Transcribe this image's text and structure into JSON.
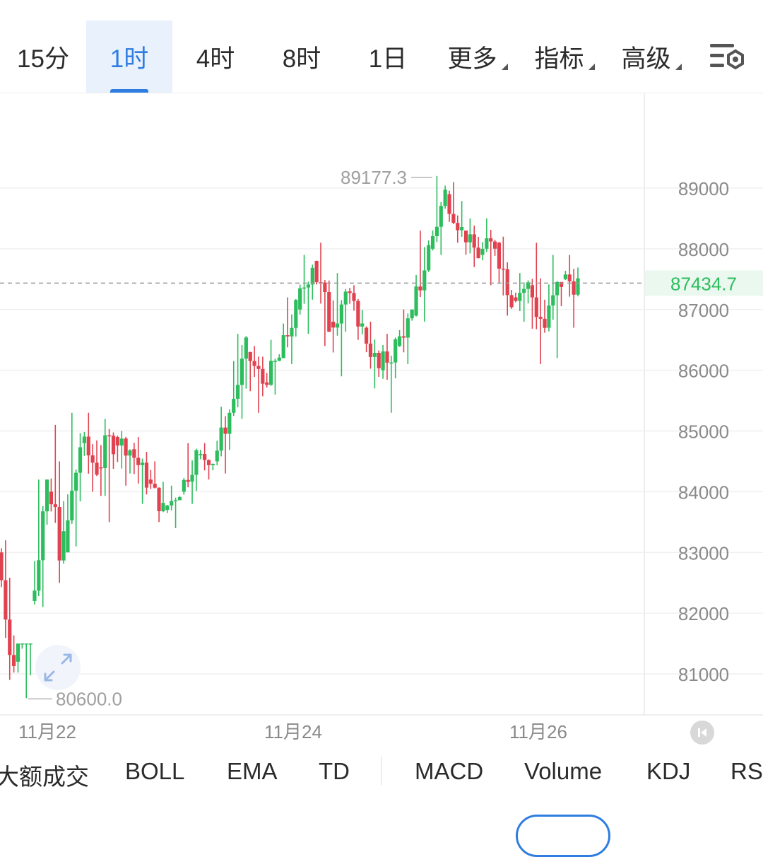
{
  "timeframe_tabs": [
    {
      "label": "15分"
    },
    {
      "label": "1时"
    },
    {
      "label": "4时"
    },
    {
      "label": "8时"
    },
    {
      "label": "1日"
    },
    {
      "label": "更多"
    },
    {
      "label": "指标"
    },
    {
      "label": "高级"
    }
  ],
  "active_tab": "1时",
  "indicators": [
    "大额成交",
    "BOLL",
    "EMA",
    "TD",
    "MACD",
    "Volume",
    "KDJ",
    "RSI"
  ],
  "colors": {
    "up": "#2ebd5e",
    "down": "#e0424f",
    "accent": "#2f7de1",
    "grid": "#f0f0f0",
    "axis_text": "#8a8a8a"
  },
  "chart_data": {
    "type": "candlestick",
    "y_ticks": [
      89000,
      88000,
      87000,
      86000,
      85000,
      84000,
      83000,
      82000,
      81000
    ],
    "x_ticks": [
      "11月22",
      "11月24",
      "11月26"
    ],
    "ylim": [
      80300,
      89800
    ],
    "current_price": "87434.7",
    "high_label": "89177.3",
    "low_label": "80600.0",
    "ohlc_rough": [
      [
        83000,
        83200,
        80900,
        81200
      ],
      [
        81200,
        81500,
        80600,
        82200
      ],
      [
        82200,
        84200,
        82100,
        84000
      ],
      [
        84000,
        85100,
        82500,
        83000
      ],
      [
        83000,
        85300,
        83100,
        84800
      ],
      [
        84800,
        85300,
        84000,
        84400
      ],
      [
        84400,
        85200,
        83500,
        84900
      ],
      [
        84900,
        85000,
        84100,
        84700
      ],
      [
        84700,
        84900,
        83800,
        84200
      ],
      [
        84200,
        84500,
        83500,
        83700
      ],
      [
        83700,
        84100,
        83400,
        84000
      ],
      [
        84000,
        84800,
        83800,
        84600
      ],
      [
        84600,
        84800,
        84200,
        84500
      ],
      [
        84500,
        85400,
        84300,
        85300
      ],
      [
        85300,
        86600,
        85200,
        86300
      ],
      [
        86300,
        86400,
        85300,
        85800
      ],
      [
        85800,
        86500,
        85600,
        86200
      ],
      [
        86200,
        87200,
        86100,
        87000
      ],
      [
        87000,
        87900,
        86600,
        87800
      ],
      [
        87800,
        88100,
        86400,
        86800
      ],
      [
        86800,
        87600,
        85900,
        87300
      ],
      [
        87300,
        87400,
        86500,
        86700
      ],
      [
        86700,
        86800,
        85700,
        86000
      ],
      [
        86000,
        86600,
        85300,
        86400
      ],
      [
        86400,
        87000,
        86100,
        86900
      ],
      [
        86900,
        88300,
        86800,
        88000
      ],
      [
        88000,
        89200,
        87900,
        88900
      ],
      [
        88900,
        89100,
        88100,
        88300
      ],
      [
        88300,
        88500,
        87700,
        87900
      ],
      [
        87900,
        88500,
        87400,
        88100
      ],
      [
        88100,
        88200,
        86900,
        87200
      ],
      [
        87200,
        87600,
        86800,
        87400
      ],
      [
        87400,
        88100,
        86100,
        86700
      ],
      [
        86700,
        87900,
        86200,
        87500
      ],
      [
        87500,
        87900,
        86700,
        87430
      ]
    ]
  }
}
